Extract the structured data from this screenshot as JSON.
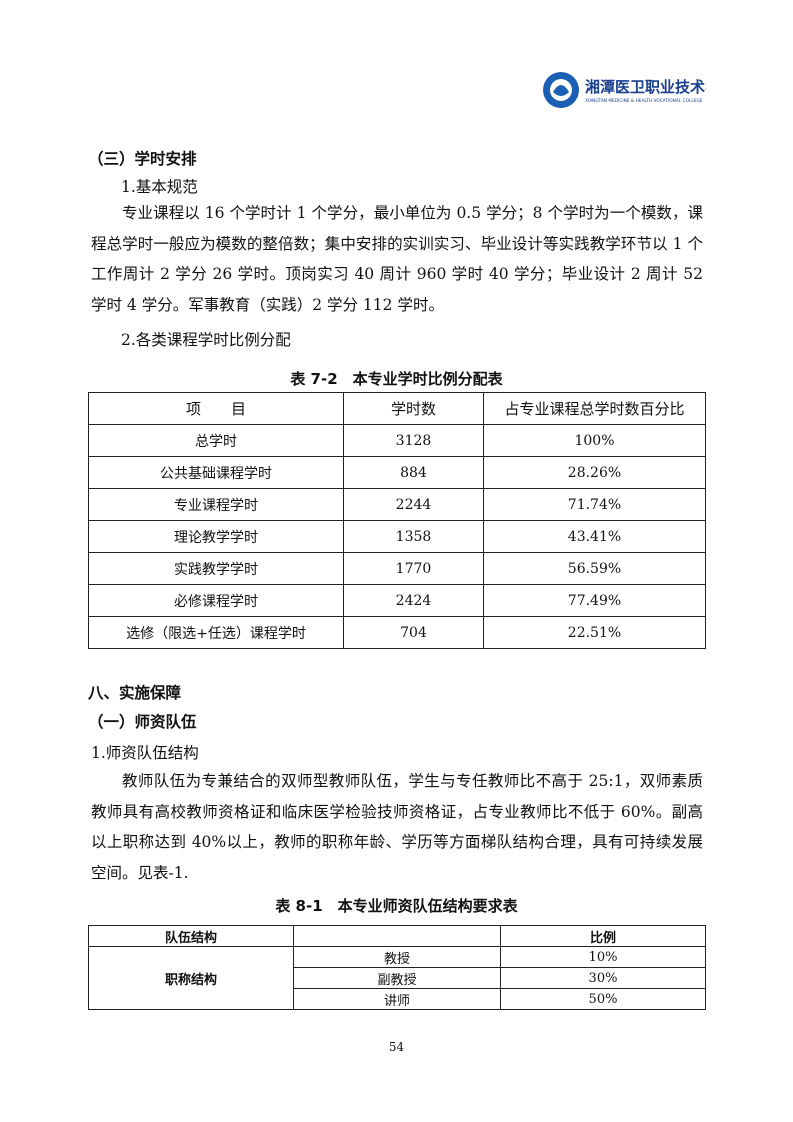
{
  "header": {
    "logo_text_cn": "湘潭医卫职业技术学院",
    "logo_text_en": "XIANGTAN MEDICINE & HEALTH VOCATIONAL COLLEGE",
    "brand_color": "#1a5fb4"
  },
  "section3": {
    "heading": "（三）学时安排",
    "sub1": "1.基本规范",
    "para": "专业课程以 16 个学时计 1 个学分，最小单位为 0.5 学分；8 个学时为一个模数，课程总学时一般应为模数的整倍数；集中安排的实训实习、毕业设计等实践教学环节以 1 个工作周计 2 学分 26 学时。顶岗实习 40 周计 960 学时 40 学分；毕业设计 2 周计 52 学时 4 学分。军事教育（实践）2 学分 112 学时。",
    "sub2": "2.各类课程学时比例分配"
  },
  "table1": {
    "caption": "表 7-2　本专业学时比例分配表",
    "headers": [
      "项　　目",
      "学时数",
      "占专业课程总学时数百分比"
    ],
    "rows": [
      [
        "总学时",
        "3128",
        "100%"
      ],
      [
        "公共基础课程学时",
        "884",
        "28.26%"
      ],
      [
        "专业课程学时",
        "2244",
        "71.74%"
      ],
      [
        "理论教学学时",
        "1358",
        "43.41%"
      ],
      [
        "实践教学学时",
        "1770",
        "56.59%"
      ],
      [
        "必修课程学时",
        "2424",
        "77.49%"
      ],
      [
        "选修（限选+任选）课程学时",
        "704",
        "22.51%"
      ]
    ]
  },
  "section8": {
    "heading": "八、实施保障",
    "sub_heading": "（一）师资队伍",
    "sub1": "1.师资队伍结构",
    "para": "教师队伍为专兼结合的双师型教师队伍，学生与专任教师比不高于 25:1，双师素质教师具有高校教师资格证和临床医学检验技师资格证，占专业教师比不低于 60%。副高以上职称达到 40%以上，教师的职称年龄、学历等方面梯队结构合理，具有可持续发展空间。见表-1."
  },
  "table2": {
    "caption": "表 8-1　本专业师资队伍结构要求表",
    "headers": [
      "队伍结构",
      "",
      "比例"
    ],
    "group": "职称结构",
    "rows": [
      [
        "教授",
        "10%"
      ],
      [
        "副教授",
        "30%"
      ],
      [
        "讲师",
        "50%"
      ]
    ]
  },
  "footer": {
    "page_number": "54"
  }
}
